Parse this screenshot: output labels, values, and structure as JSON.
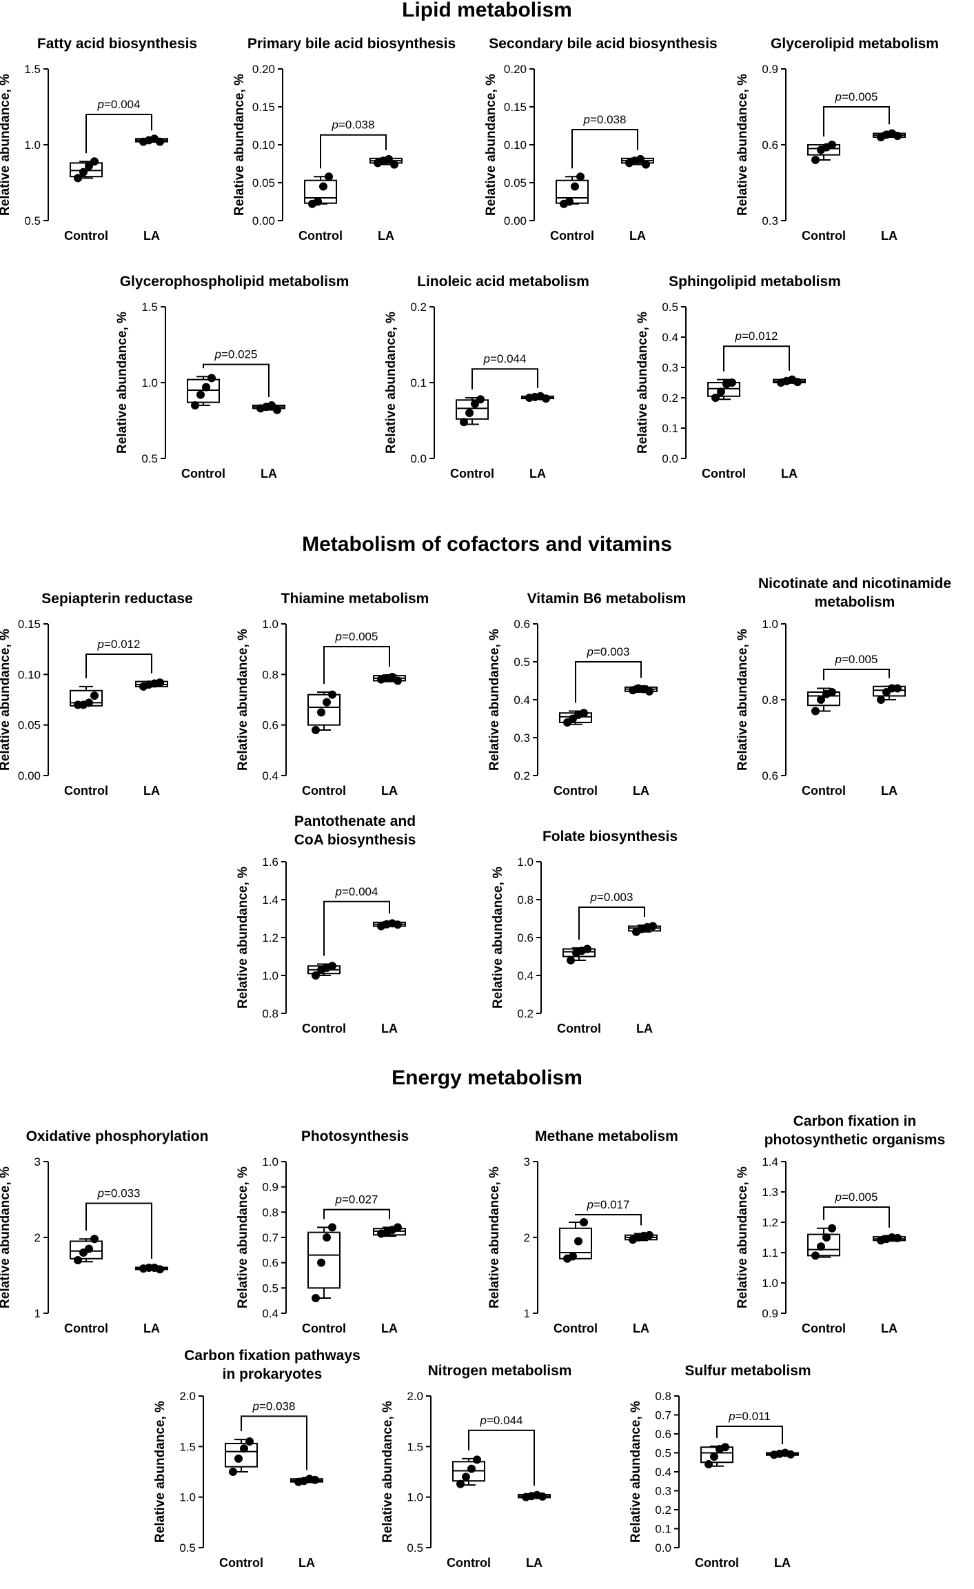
{
  "sections": [
    {
      "title": "Lipid metabolism"
    },
    {
      "title": "Metabolism of cofactors and vitamins"
    },
    {
      "title": "Energy metabolism"
    }
  ],
  "common": {
    "ylabel": "Relative abundance, %",
    "categories": [
      "Control",
      "LA"
    ],
    "box_color": "#000000"
  },
  "chart_data": [
    {
      "type": "box",
      "title": [
        "Fatty acid biosynthesis"
      ],
      "ylim": [
        0.5,
        1.5
      ],
      "yticks": [
        "0.5",
        "1.0",
        "1.5"
      ],
      "p": "=0.004",
      "control": {
        "points": [
          0.78,
          0.82,
          0.86,
          0.89
        ],
        "q1": 0.79,
        "median": 0.83,
        "q3": 0.88,
        "min": 0.78,
        "max": 0.89
      },
      "la": {
        "points": [
          1.02,
          1.03,
          1.04,
          1.02
        ],
        "q1": 1.02,
        "median": 1.03,
        "q3": 1.04,
        "min": 1.02,
        "max": 1.04
      },
      "bracket": 1.2
    },
    {
      "type": "box",
      "title": [
        "Primary bile acid biosynthesis"
      ],
      "ylim": [
        0,
        0.2
      ],
      "yticks": [
        "0.00",
        "0.05",
        "0.10",
        "0.15",
        "0.20"
      ],
      "p": "=0.038",
      "control": {
        "points": [
          0.022,
          0.025,
          0.045,
          0.058
        ],
        "q1": 0.023,
        "median": 0.03,
        "q3": 0.053,
        "min": 0.022,
        "max": 0.058
      },
      "la": {
        "points": [
          0.076,
          0.079,
          0.081,
          0.074
        ],
        "q1": 0.076,
        "median": 0.079,
        "q3": 0.082,
        "min": 0.074,
        "max": 0.082
      },
      "bracket": 0.113
    },
    {
      "type": "box",
      "title": [
        "Secondary bile acid biosynthesis"
      ],
      "ylim": [
        0,
        0.2
      ],
      "yticks": [
        "0.00",
        "0.05",
        "0.10",
        "0.15",
        "0.20"
      ],
      "p": "=0.038",
      "control": {
        "points": [
          0.022,
          0.025,
          0.045,
          0.058
        ],
        "q1": 0.023,
        "median": 0.03,
        "q3": 0.053,
        "min": 0.022,
        "max": 0.058
      },
      "la": {
        "points": [
          0.076,
          0.079,
          0.081,
          0.074
        ],
        "q1": 0.076,
        "median": 0.079,
        "q3": 0.082,
        "min": 0.074,
        "max": 0.082
      },
      "bracket": 0.12
    },
    {
      "type": "box",
      "title": [
        "Glycerolipid metabolism"
      ],
      "ylim": [
        0.3,
        0.9
      ],
      "yticks": [
        "0.3",
        "0.6",
        "0.9"
      ],
      "p": "=0.005",
      "control": {
        "points": [
          0.54,
          0.58,
          0.59,
          0.6
        ],
        "q1": 0.56,
        "median": 0.585,
        "q3": 0.6,
        "min": 0.54,
        "max": 0.6
      },
      "la": {
        "points": [
          0.63,
          0.64,
          0.645,
          0.635
        ],
        "q1": 0.63,
        "median": 0.638,
        "q3": 0.645,
        "min": 0.63,
        "max": 0.648
      },
      "bracket": 0.75
    },
    {
      "type": "box",
      "title": [
        "Glycerophospholipid metabolism"
      ],
      "ylim": [
        0.5,
        1.5
      ],
      "yticks": [
        "0.5",
        "1.0",
        "1.5"
      ],
      "p": "=0.025",
      "control": {
        "points": [
          0.85,
          0.92,
          0.97,
          1.03
        ],
        "q1": 0.87,
        "median": 0.95,
        "q3": 1.02,
        "min": 0.85,
        "max": 1.04
      },
      "la": {
        "points": [
          0.83,
          0.84,
          0.85,
          0.82
        ],
        "q1": 0.83,
        "median": 0.84,
        "q3": 0.85,
        "min": 0.82,
        "max": 0.85
      },
      "bracket": 1.12
    },
    {
      "type": "box",
      "title": [
        "Linoleic acid metabolism"
      ],
      "ylim": [
        0,
        0.2
      ],
      "yticks": [
        "0.0",
        "0.1",
        "0.2"
      ],
      "p": "=0.044",
      "control": {
        "points": [
          0.048,
          0.06,
          0.072,
          0.078
        ],
        "q1": 0.052,
        "median": 0.066,
        "q3": 0.077,
        "min": 0.045,
        "max": 0.08
      },
      "la": {
        "points": [
          0.08,
          0.081,
          0.082,
          0.079
        ],
        "q1": 0.079,
        "median": 0.08,
        "q3": 0.082,
        "min": 0.079,
        "max": 0.082
      },
      "bracket": 0.118
    },
    {
      "type": "box",
      "title": [
        "Sphingolipid metabolism"
      ],
      "ylim": [
        0,
        0.5
      ],
      "yticks": [
        "0.0",
        "0.1",
        "0.2",
        "0.3",
        "0.4",
        "0.5"
      ],
      "p": "=0.012",
      "control": {
        "points": [
          0.2,
          0.22,
          0.245,
          0.25
        ],
        "q1": 0.205,
        "median": 0.23,
        "q3": 0.25,
        "min": 0.195,
        "max": 0.26
      },
      "la": {
        "points": [
          0.25,
          0.255,
          0.26,
          0.252
        ],
        "q1": 0.25,
        "median": 0.254,
        "q3": 0.26,
        "min": 0.248,
        "max": 0.262
      },
      "bracket": 0.37
    },
    {
      "type": "box",
      "title": [
        "Sepiapterin reductase"
      ],
      "ylim": [
        0,
        0.15
      ],
      "yticks": [
        "0.00",
        "0.05",
        "0.10",
        "0.15"
      ],
      "p": "=0.012",
      "control": {
        "points": [
          0.07,
          0.07,
          0.072,
          0.079
        ],
        "q1": 0.069,
        "median": 0.072,
        "q3": 0.084,
        "min": 0.069,
        "max": 0.088
      },
      "la": {
        "points": [
          0.088,
          0.09,
          0.091,
          0.092
        ],
        "q1": 0.088,
        "median": 0.09,
        "q3": 0.093,
        "min": 0.088,
        "max": 0.093
      },
      "bracket": 0.12
    },
    {
      "type": "box",
      "title": [
        "Thiamine metabolism"
      ],
      "ylim": [
        0.4,
        1.0
      ],
      "yticks": [
        "0.4",
        "0.6",
        "0.8",
        "1.0"
      ],
      "p": "=0.005",
      "control": {
        "points": [
          0.58,
          0.65,
          0.69,
          0.72
        ],
        "q1": 0.6,
        "median": 0.67,
        "q3": 0.72,
        "min": 0.58,
        "max": 0.73
      },
      "la": {
        "points": [
          0.78,
          0.785,
          0.79,
          0.775
        ],
        "q1": 0.775,
        "median": 0.785,
        "q3": 0.795,
        "min": 0.772,
        "max": 0.798
      },
      "bracket": 0.91
    },
    {
      "type": "box",
      "title": [
        "Vitamin B6 metabolism"
      ],
      "ylim": [
        0.2,
        0.6
      ],
      "yticks": [
        "0.2",
        "0.3",
        "0.4",
        "0.5",
        "0.6"
      ],
      "p": "=0.003",
      "control": {
        "points": [
          0.34,
          0.35,
          0.36,
          0.365
        ],
        "q1": 0.34,
        "median": 0.355,
        "q3": 0.365,
        "min": 0.335,
        "max": 0.37
      },
      "la": {
        "points": [
          0.425,
          0.43,
          0.428,
          0.422
        ],
        "q1": 0.422,
        "median": 0.428,
        "q3": 0.433,
        "min": 0.42,
        "max": 0.436
      },
      "bracket": 0.5
    },
    {
      "type": "box",
      "title": [
        "Nicotinate and nicotinamide",
        "metabolism"
      ],
      "ylim": [
        0.6,
        1.0
      ],
      "yticks": [
        "0.6",
        "0.8",
        "1.0"
      ],
      "p": "=0.005",
      "control": {
        "points": [
          0.77,
          0.8,
          0.815,
          0.82
        ],
        "q1": 0.785,
        "median": 0.81,
        "q3": 0.82,
        "min": 0.77,
        "max": 0.83
      },
      "la": {
        "points": [
          0.8,
          0.82,
          0.83,
          0.83
        ],
        "q1": 0.81,
        "median": 0.825,
        "q3": 0.835,
        "min": 0.8,
        "max": 0.835
      },
      "bracket": 0.88
    },
    {
      "type": "box",
      "title": [
        "Pantothenate and",
        "CoA biosynthesis"
      ],
      "ylim": [
        0.8,
        1.6
      ],
      "yticks": [
        "0.8",
        "1.0",
        "1.2",
        "1.4",
        "1.6"
      ],
      "p": "=0.004",
      "control": {
        "points": [
          1.0,
          1.03,
          1.04,
          1.05
        ],
        "q1": 1.01,
        "median": 1.03,
        "q3": 1.05,
        "min": 1.0,
        "max": 1.06
      },
      "la": {
        "points": [
          1.26,
          1.27,
          1.275,
          1.268
        ],
        "q1": 1.26,
        "median": 1.27,
        "q3": 1.28,
        "min": 1.258,
        "max": 1.283
      },
      "bracket": 1.39
    },
    {
      "type": "box",
      "title": [
        "Folate biosynthesis"
      ],
      "ylim": [
        0.2,
        1.0
      ],
      "yticks": [
        "0.2",
        "0.4",
        "0.6",
        "0.8",
        "1.0"
      ],
      "p": "=0.003",
      "control": {
        "points": [
          0.48,
          0.52,
          0.53,
          0.54
        ],
        "q1": 0.5,
        "median": 0.525,
        "q3": 0.54,
        "min": 0.48,
        "max": 0.545
      },
      "la": {
        "points": [
          0.63,
          0.645,
          0.655,
          0.66
        ],
        "q1": 0.635,
        "median": 0.65,
        "q3": 0.66,
        "min": 0.63,
        "max": 0.665
      },
      "bracket": 0.76
    },
    {
      "type": "box",
      "title": [
        "Oxidative phosphorylation"
      ],
      "ylim": [
        1,
        3
      ],
      "yticks": [
        "1",
        "2",
        "3"
      ],
      "p": "=0.033",
      "control": {
        "points": [
          1.7,
          1.8,
          1.85,
          1.98
        ],
        "q1": 1.72,
        "median": 1.82,
        "q3": 1.95,
        "min": 1.68,
        "max": 1.98
      },
      "la": {
        "points": [
          1.59,
          1.6,
          1.6,
          1.58
        ],
        "q1": 1.585,
        "median": 1.595,
        "q3": 1.605,
        "min": 1.58,
        "max": 1.61
      },
      "bracket": 2.45
    },
    {
      "type": "box",
      "title": [
        "Photosynthesis"
      ],
      "ylim": [
        0.4,
        1.0
      ],
      "yticks": [
        "0.4",
        "0.5",
        "0.6",
        "0.7",
        "0.8",
        "0.9",
        "1.0"
      ],
      "p": "=0.027",
      "control": {
        "points": [
          0.46,
          0.6,
          0.7,
          0.74
        ],
        "q1": 0.5,
        "median": 0.63,
        "q3": 0.72,
        "min": 0.46,
        "max": 0.74
      },
      "la": {
        "points": [
          0.715,
          0.72,
          0.73,
          0.74
        ],
        "q1": 0.71,
        "median": 0.725,
        "q3": 0.735,
        "min": 0.705,
        "max": 0.74
      },
      "bracket": 0.81
    },
    {
      "type": "box",
      "title": [
        "Methane metabolism"
      ],
      "ylim": [
        1,
        3
      ],
      "yticks": [
        "1",
        "2",
        "3"
      ],
      "p": "=0.017",
      "control": {
        "points": [
          1.72,
          1.75,
          1.95,
          2.2
        ],
        "q1": 1.72,
        "median": 1.8,
        "q3": 2.12,
        "min": 1.72,
        "max": 2.2
      },
      "la": {
        "points": [
          1.97,
          2.0,
          2.02,
          2.03
        ],
        "q1": 1.97,
        "median": 2.0,
        "q3": 2.03,
        "min": 1.96,
        "max": 2.05
      },
      "bracket": 2.3
    },
    {
      "type": "box",
      "title": [
        "Carbon fixation in",
        "photosynthetic organisms"
      ],
      "ylim": [
        0.9,
        1.4
      ],
      "yticks": [
        "0.9",
        "1.0",
        "1.1",
        "1.2",
        "1.3",
        "1.4"
      ],
      "p": "=0.005",
      "control": {
        "points": [
          1.09,
          1.12,
          1.15,
          1.18
        ],
        "q1": 1.09,
        "median": 1.11,
        "q3": 1.16,
        "min": 1.085,
        "max": 1.18
      },
      "la": {
        "points": [
          1.14,
          1.145,
          1.15,
          1.148
        ],
        "q1": 1.14,
        "median": 1.145,
        "q3": 1.152,
        "min": 1.138,
        "max": 1.155
      },
      "bracket": 1.25
    },
    {
      "type": "box",
      "title": [
        "Carbon fixation pathways",
        "in prokaryotes"
      ],
      "ylim": [
        0.5,
        2.0
      ],
      "yticks": [
        "0.5",
        "1.0",
        "1.5",
        "2.0"
      ],
      "p": "=0.038",
      "control": {
        "points": [
          1.25,
          1.38,
          1.48,
          1.55
        ],
        "q1": 1.3,
        "median": 1.45,
        "q3": 1.53,
        "min": 1.25,
        "max": 1.57
      },
      "la": {
        "points": [
          1.15,
          1.16,
          1.18,
          1.17
        ],
        "q1": 1.15,
        "median": 1.165,
        "q3": 1.18,
        "min": 1.145,
        "max": 1.185
      },
      "bracket": 1.8
    },
    {
      "type": "box",
      "title": [
        "Nitrogen metabolism"
      ],
      "ylim": [
        0.5,
        2.0
      ],
      "yticks": [
        "0.5",
        "1.0",
        "1.5",
        "2.0"
      ],
      "p": "=0.044",
      "control": {
        "points": [
          1.13,
          1.2,
          1.28,
          1.37
        ],
        "q1": 1.16,
        "median": 1.26,
        "q3": 1.35,
        "min": 1.12,
        "max": 1.38
      },
      "la": {
        "points": [
          1.0,
          1.01,
          1.02,
          1.005
        ],
        "q1": 0.995,
        "median": 1.01,
        "q3": 1.025,
        "min": 0.99,
        "max": 1.03
      },
      "bracket": 1.66
    },
    {
      "type": "box",
      "title": [
        "Sulfur metabolism"
      ],
      "ylim": [
        0.0,
        0.8
      ],
      "yticks": [
        "0.0",
        "0.1",
        "0.2",
        "0.3",
        "0.4",
        "0.5",
        "0.6",
        "0.7",
        "0.8"
      ],
      "p": "=0.011",
      "control": {
        "points": [
          0.44,
          0.48,
          0.52,
          0.53
        ],
        "q1": 0.45,
        "median": 0.5,
        "q3": 0.53,
        "min": 0.43,
        "max": 0.535
      },
      "la": {
        "points": [
          0.49,
          0.495,
          0.5,
          0.492
        ],
        "q1": 0.488,
        "median": 0.495,
        "q3": 0.5,
        "min": 0.486,
        "max": 0.502
      },
      "bracket": 0.64
    }
  ]
}
